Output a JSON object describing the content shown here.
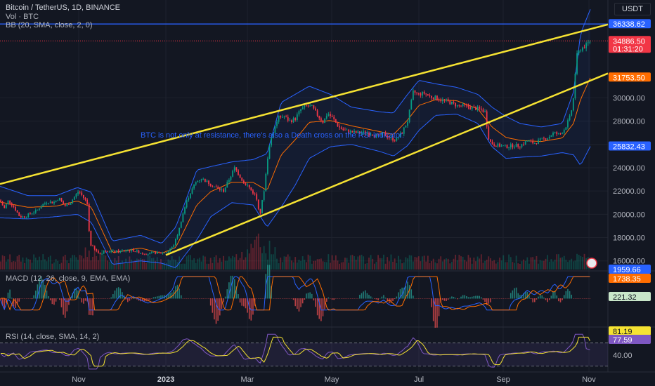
{
  "header": {
    "title": "Bitcoin / TetherUS, 1D, BINANCE",
    "vol_label": "Vol · BTC",
    "bb_label": "BB (20, SMA, close, 2, 0)",
    "unit": "USDT"
  },
  "colors": {
    "background": "#131722",
    "up": "#089981",
    "down": "#f23645",
    "bb_band": "#2962ff",
    "bb_basis": "#ff6d00",
    "trendline": "#f5e232",
    "macd_line": "#2962ff",
    "signal_line": "#ff6d00",
    "rsi_line": "#7e57c2",
    "rsi_ma": "#f5e232"
  },
  "annotation": "BTC is not only at resistance, there's also a Death cross on the RSI indicator.",
  "chart_data": {
    "type": "candlestick",
    "symbol": "BTCUSDT",
    "price_axis": {
      "ticks": [
        "16000.00",
        "18000.00",
        "20000.00",
        "22000.00",
        "24000.00",
        "26000.00",
        "28000.00",
        "30000.00"
      ],
      "range": [
        15200,
        38400
      ],
      "labels": [
        {
          "value": "36338.62",
          "color": "#2962ff",
          "kind": "horizontal-line"
        },
        {
          "value": "34886.50",
          "color": "#f23645",
          "kind": "last-price",
          "countdown": "01:31:20"
        },
        {
          "value": "31753.50",
          "color": "#ff6d00",
          "kind": "bb-basis"
        },
        {
          "value": "25832.43",
          "color": "#2962ff",
          "kind": "bb-lower"
        }
      ],
      "horizontal_line": 36338.62,
      "last_price": 34886.5
    },
    "time_axis": [
      "Nov",
      "2023",
      "Mar",
      "May",
      "Jul",
      "Sep",
      "Nov"
    ],
    "price_anchors": [
      [
        0,
        21200
      ],
      [
        6,
        20500
      ],
      [
        12,
        21200
      ],
      [
        20,
        20600
      ],
      [
        28,
        19800
      ],
      [
        36,
        19800
      ],
      [
        44,
        20100
      ],
      [
        52,
        20300
      ],
      [
        60,
        20800
      ],
      [
        68,
        21100
      ],
      [
        76,
        21000
      ],
      [
        84,
        21400
      ],
      [
        92,
        20700
      ],
      [
        100,
        21000
      ],
      [
        106,
        21500
      ],
      [
        112,
        22000
      ],
      [
        118,
        21500
      ],
      [
        124,
        21000
      ],
      [
        128,
        17500
      ],
      [
        134,
        17000
      ],
      [
        142,
        16600
      ],
      [
        150,
        16900
      ],
      [
        160,
        16800
      ],
      [
        170,
        16800
      ],
      [
        180,
        16900
      ],
      [
        190,
        16900
      ],
      [
        200,
        16700
      ],
      [
        210,
        16600
      ],
      [
        220,
        16700
      ],
      [
        232,
        16700
      ],
      [
        238,
        16800
      ],
      [
        246,
        17200
      ],
      [
        254,
        18500
      ],
      [
        260,
        20000
      ],
      [
        266,
        21200
      ],
      [
        272,
        22000
      ],
      [
        278,
        22700
      ],
      [
        286,
        23100
      ],
      [
        294,
        22800
      ],
      [
        302,
        22500
      ],
      [
        310,
        22200
      ],
      [
        318,
        22000
      ],
      [
        326,
        23000
      ],
      [
        334,
        24000
      ],
      [
        340,
        23400
      ],
      [
        346,
        22800
      ],
      [
        352,
        22500
      ],
      [
        358,
        22000
      ],
      [
        364,
        21600
      ],
      [
        370,
        20000
      ],
      [
        376,
        22200
      ],
      [
        382,
        25500
      ],
      [
        388,
        27000
      ],
      [
        396,
        28300
      ],
      [
        404,
        28400
      ],
      [
        412,
        28000
      ],
      [
        420,
        28200
      ],
      [
        428,
        29000
      ],
      [
        436,
        29300
      ],
      [
        444,
        29200
      ],
      [
        452,
        28500
      ],
      [
        460,
        27900
      ],
      [
        466,
        28700
      ],
      [
        474,
        28200
      ],
      [
        482,
        27500
      ],
      [
        490,
        27200
      ],
      [
        498,
        27100
      ],
      [
        506,
        27000
      ],
      [
        514,
        27000
      ],
      [
        522,
        27000
      ],
      [
        530,
        26900
      ],
      [
        538,
        26700
      ],
      [
        546,
        26900
      ],
      [
        556,
        26500
      ],
      [
        564,
        26400
      ],
      [
        572,
        27000
      ],
      [
        580,
        28000
      ],
      [
        588,
        30500
      ],
      [
        596,
        30300
      ],
      [
        604,
        30400
      ],
      [
        612,
        30100
      ],
      [
        620,
        30000
      ],
      [
        628,
        29800
      ],
      [
        636,
        29700
      ],
      [
        644,
        29500
      ],
      [
        652,
        29300
      ],
      [
        660,
        29300
      ],
      [
        668,
        29200
      ],
      [
        676,
        29100
      ],
      [
        684,
        29000
      ],
      [
        690,
        28800
      ],
      [
        696,
        26300
      ],
      [
        702,
        26000
      ],
      [
        710,
        25900
      ],
      [
        720,
        25800
      ],
      [
        730,
        25900
      ],
      [
        740,
        25900
      ],
      [
        750,
        26300
      ],
      [
        760,
        26100
      ],
      [
        770,
        26400
      ],
      [
        780,
        26600
      ],
      [
        788,
        27000
      ],
      [
        796,
        26800
      ],
      [
        804,
        27400
      ],
      [
        812,
        28500
      ],
      [
        816,
        30000
      ],
      [
        820,
        33500
      ],
      [
        826,
        34200
      ],
      [
        834,
        34500
      ],
      [
        840,
        34886
      ]
    ],
    "bollinger": {
      "upper_anchors": [
        [
          0,
          22400
        ],
        [
          40,
          21600
        ],
        [
          80,
          21600
        ],
        [
          110,
          22300
        ],
        [
          130,
          21900
        ],
        [
          160,
          17700
        ],
        [
          200,
          18200
        ],
        [
          230,
          17500
        ],
        [
          250,
          18900
        ],
        [
          262,
          20800
        ],
        [
          280,
          23800
        ],
        [
          300,
          24100
        ],
        [
          330,
          24500
        ],
        [
          360,
          24700
        ],
        [
          380,
          25200
        ],
        [
          400,
          29600
        ],
        [
          420,
          30300
        ],
        [
          440,
          31000
        ],
        [
          470,
          30300
        ],
        [
          500,
          29200
        ],
        [
          540,
          28800
        ],
        [
          560,
          28700
        ],
        [
          580,
          30300
        ],
        [
          596,
          31500
        ],
        [
          620,
          31200
        ],
        [
          650,
          30900
        ],
        [
          680,
          30300
        ],
        [
          700,
          29200
        ],
        [
          720,
          28400
        ],
        [
          740,
          27800
        ],
        [
          770,
          27500
        ],
        [
          800,
          27800
        ],
        [
          816,
          30500
        ],
        [
          826,
          35500
        ],
        [
          840,
          37600
        ]
      ],
      "lower_anchors": [
        [
          0,
          19700
        ],
        [
          40,
          19600
        ],
        [
          80,
          19800
        ],
        [
          110,
          20000
        ],
        [
          130,
          19300
        ],
        [
          160,
          15700
        ],
        [
          200,
          16000
        ],
        [
          230,
          15800
        ],
        [
          250,
          15400
        ],
        [
          262,
          16400
        ],
        [
          280,
          17800
        ],
        [
          300,
          19800
        ],
        [
          330,
          21000
        ],
        [
          360,
          20800
        ],
        [
          380,
          18900
        ],
        [
          400,
          20600
        ],
        [
          420,
          22500
        ],
        [
          440,
          24800
        ],
        [
          470,
          25800
        ],
        [
          500,
          26000
        ],
        [
          540,
          25400
        ],
        [
          560,
          25000
        ],
        [
          580,
          25900
        ],
        [
          596,
          27200
        ],
        [
          620,
          28500
        ],
        [
          650,
          28600
        ],
        [
          680,
          27800
        ],
        [
          700,
          25800
        ],
        [
          720,
          24800
        ],
        [
          740,
          24900
        ],
        [
          770,
          25000
        ],
        [
          800,
          25300
        ],
        [
          816,
          25100
        ],
        [
          826,
          24200
        ],
        [
          840,
          25832
        ]
      ]
    },
    "trendlines": [
      {
        "from": [
          0,
          22600
        ],
        "to": [
          865,
          36300
        ]
      },
      {
        "from": [
          236,
          16500
        ],
        "to": [
          865,
          32100
        ]
      }
    ],
    "macd": {
      "label": "MACD (12, 26, close, 9, EMA, EMA)",
      "values": [
        "1959.66",
        "1738.35",
        "221.32"
      ]
    },
    "rsi": {
      "label": "RSI (14, close, SMA, 14, 2)",
      "values": [
        "81.19",
        "77.59"
      ],
      "tick": "40.00"
    }
  }
}
